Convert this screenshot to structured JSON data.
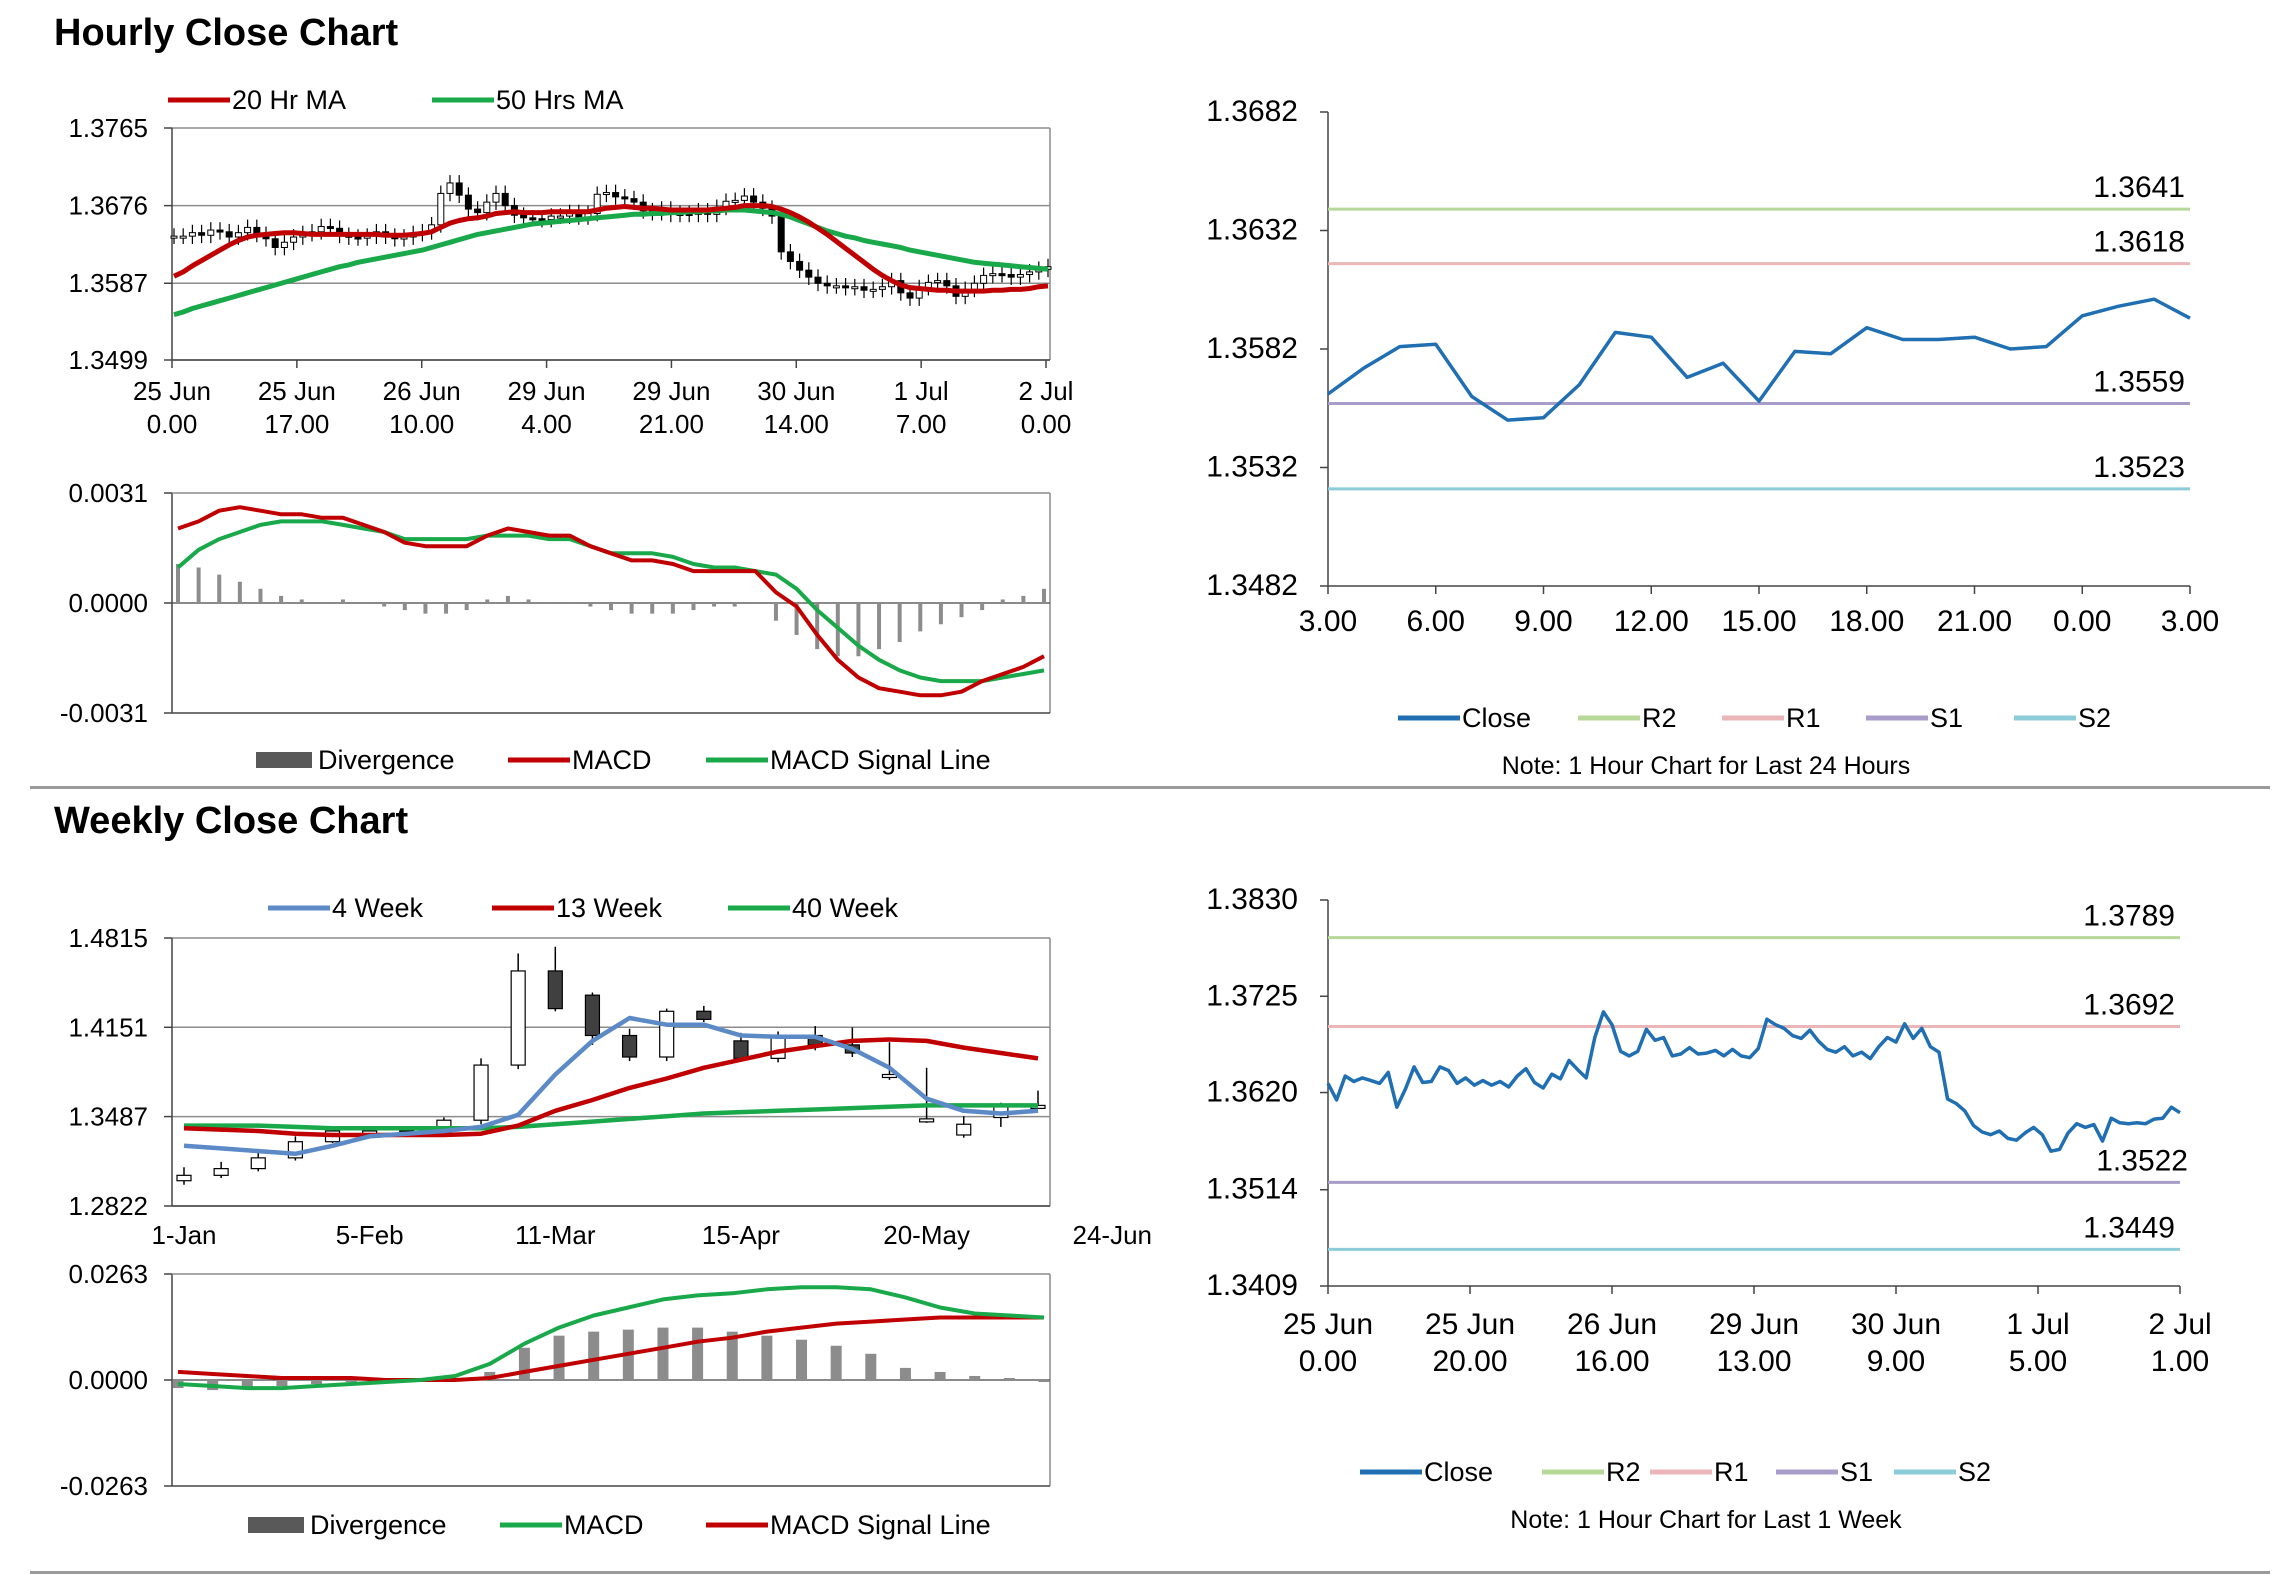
{
  "sections": {
    "hourly_title": "Hourly Close Chart",
    "weekly_title": "Weekly Close Chart"
  },
  "notes": {
    "hourly": "Note: 1 Hour Chart for Last 24 Hours",
    "weekly": "Note: 1 Hour Chart for  Last 1 Week"
  },
  "colors": {
    "close": "#1f6fb2",
    "r2": "#b8d89a",
    "r1": "#eab6b8",
    "s1": "#a89cc8",
    "s2": "#8ccbd8",
    "ma_red": "#c00000",
    "ma_green": "#19a84a",
    "ma_blue": "#5b8ac6",
    "bar_gray": "#595959"
  },
  "chart_data": [
    {
      "id": "hourly-price",
      "type": "candlestick",
      "title": "Hourly Close Chart",
      "yticks": [
        "1.3765",
        "1.3676",
        "1.3587",
        "1.3499"
      ],
      "ylim": [
        1.3499,
        1.3765
      ],
      "xticks": [
        [
          "25 Jun",
          "0.00"
        ],
        [
          "25 Jun",
          "17.00"
        ],
        [
          "26 Jun",
          "10.00"
        ],
        [
          "29 Jun",
          "4.00"
        ],
        [
          "29 Jun",
          "21.00"
        ],
        [
          "30 Jun",
          "14.00"
        ],
        [
          "1 Jul",
          "7.00"
        ],
        [
          "2 Jul",
          "0.00"
        ]
      ],
      "legend": [
        "20 Hr MA",
        "50 Hrs MA"
      ],
      "close": [
        1.3641,
        1.3641,
        1.3645,
        1.3642,
        1.3648,
        1.3646,
        1.364,
        1.3645,
        1.3651,
        1.3643,
        1.3638,
        1.3628,
        1.3634,
        1.364,
        1.3644,
        1.3646,
        1.3652,
        1.365,
        1.3642,
        1.364,
        1.3639,
        1.3641,
        1.3646,
        1.3641,
        1.3638,
        1.364,
        1.3644,
        1.3646,
        1.3654,
        1.369,
        1.3702,
        1.3688,
        1.3672,
        1.3668,
        1.368,
        1.369,
        1.3676,
        1.3665,
        1.3662,
        1.3661,
        1.366,
        1.3664,
        1.3664,
        1.3668,
        1.3663,
        1.3667,
        1.3689,
        1.3691,
        1.3686,
        1.3684,
        1.368,
        1.367,
        1.3668,
        1.3672,
        1.3666,
        1.3667,
        1.3666,
        1.367,
        1.3666,
        1.3674,
        1.3681,
        1.3682,
        1.3687,
        1.368,
        1.3673,
        1.3664,
        1.3623,
        1.3612,
        1.3602,
        1.3594,
        1.3587,
        1.3584,
        1.3584,
        1.3582,
        1.3583,
        1.3579,
        1.358,
        1.3583,
        1.359,
        1.3576,
        1.357,
        1.3582,
        1.3588,
        1.359,
        1.3584,
        1.3572,
        1.358,
        1.3587,
        1.3596,
        1.3598,
        1.3597,
        1.3594,
        1.3597,
        1.36,
        1.3603,
        1.3606
      ],
      "ma20": [
        1.3595,
        1.36,
        1.3607,
        1.3613,
        1.3619,
        1.3625,
        1.3631,
        1.3636,
        1.364,
        1.3642,
        1.3643,
        1.3644,
        1.3645,
        1.3645,
        1.3644,
        1.3643,
        1.3643,
        1.3643,
        1.3643,
        1.3643,
        1.3643,
        1.3643,
        1.3643,
        1.3642,
        1.3642,
        1.3642,
        1.3643,
        1.3644,
        1.3646,
        1.3651,
        1.3656,
        1.3659,
        1.3661,
        1.3662,
        1.3664,
        1.3667,
        1.3668,
        1.3669,
        1.3668,
        1.3668,
        1.3668,
        1.3669,
        1.3669,
        1.3669,
        1.3669,
        1.3669,
        1.3671,
        1.3673,
        1.3674,
        1.3675,
        1.3674,
        1.3673,
        1.3673,
        1.3672,
        1.3671,
        1.3671,
        1.3671,
        1.3671,
        1.3671,
        1.3672,
        1.3673,
        1.3674,
        1.3676,
        1.3676,
        1.3676,
        1.3675,
        1.3672,
        1.3668,
        1.3663,
        1.3657,
        1.365,
        1.3643,
        1.3635,
        1.3627,
        1.3619,
        1.3611,
        1.3603,
        1.3596,
        1.359,
        1.3585,
        1.3582,
        1.3581,
        1.358,
        1.3579,
        1.3579,
        1.3578,
        1.3578,
        1.3578,
        1.3578,
        1.3579,
        1.3579,
        1.358,
        1.358,
        1.3581,
        1.3583,
        1.3584
      ],
      "ma50": [
        1.3551,
        1.3554,
        1.3558,
        1.3561,
        1.3564,
        1.3567,
        1.357,
        1.3573,
        1.3576,
        1.3579,
        1.3582,
        1.3585,
        1.3588,
        1.3591,
        1.3594,
        1.3597,
        1.36,
        1.3603,
        1.3606,
        1.3608,
        1.3611,
        1.3613,
        1.3615,
        1.3617,
        1.3619,
        1.3621,
        1.3623,
        1.3625,
        1.3628,
        1.3631,
        1.3634,
        1.3637,
        1.364,
        1.3643,
        1.3645,
        1.3647,
        1.3649,
        1.3651,
        1.3653,
        1.3655,
        1.3656,
        1.3657,
        1.3658,
        1.3659,
        1.366,
        1.3661,
        1.3662,
        1.3663,
        1.3664,
        1.3665,
        1.3666,
        1.3666,
        1.3667,
        1.3667,
        1.3668,
        1.3668,
        1.3669,
        1.3669,
        1.367,
        1.367,
        1.3671,
        1.3671,
        1.3671,
        1.367,
        1.3669,
        1.3668,
        1.3666,
        1.3663,
        1.3659,
        1.3655,
        1.3651,
        1.3647,
        1.3644,
        1.3641,
        1.3639,
        1.3636,
        1.3634,
        1.3632,
        1.363,
        1.3628,
        1.3625,
        1.3623,
        1.3621,
        1.3619,
        1.3617,
        1.3615,
        1.3613,
        1.3611,
        1.361,
        1.3609,
        1.3608,
        1.3607,
        1.3606,
        1.3605,
        1.3604,
        1.3603
      ]
    },
    {
      "id": "hourly-macd",
      "type": "macd",
      "yticks": [
        "0.0031",
        "0.0000",
        "-0.0031"
      ],
      "ylim": [
        -0.0031,
        0.0031
      ],
      "legend": [
        "Divergence",
        "MACD",
        "MACD Signal Line"
      ],
      "macd": [
        0.0021,
        0.0023,
        0.0026,
        0.0027,
        0.0026,
        0.0025,
        0.0025,
        0.0024,
        0.0024,
        0.0022,
        0.002,
        0.0017,
        0.0016,
        0.0016,
        0.0016,
        0.0019,
        0.0021,
        0.002,
        0.0019,
        0.0019,
        0.0016,
        0.0014,
        0.0012,
        0.0012,
        0.0011,
        0.0009,
        0.0009,
        0.0009,
        0.0009,
        0.0003,
        -0.0001,
        -0.0009,
        -0.0016,
        -0.0021,
        -0.0024,
        -0.0025,
        -0.0026,
        -0.0026,
        -0.0025,
        -0.0022,
        -0.002,
        -0.0018,
        -0.0015
      ],
      "signal": [
        0.001,
        0.0015,
        0.0018,
        0.002,
        0.0022,
        0.0023,
        0.0023,
        0.0023,
        0.0022,
        0.0021,
        0.002,
        0.0018,
        0.0018,
        0.0018,
        0.0018,
        0.0019,
        0.0019,
        0.0019,
        0.0018,
        0.0018,
        0.0016,
        0.0014,
        0.0014,
        0.0014,
        0.0013,
        0.0011,
        0.001,
        0.001,
        0.0009,
        0.0008,
        0.0004,
        -0.0002,
        -0.0007,
        -0.0012,
        -0.0016,
        -0.0019,
        -0.0021,
        -0.0022,
        -0.0022,
        -0.0022,
        -0.0021,
        -0.002,
        -0.0019
      ],
      "divergence": [
        0.0011,
        0.001,
        0.0008,
        0.0006,
        0.0004,
        0.0002,
        0.0001,
        0.0,
        0.0001,
        0.0,
        -0.0001,
        -0.0002,
        -0.0003,
        -0.0003,
        -0.0002,
        0.0001,
        0.0002,
        0.0001,
        0.0,
        0.0,
        -0.0001,
        -0.0002,
        -0.0003,
        -0.0003,
        -0.0003,
        -0.0002,
        -0.0001,
        -0.0001,
        0.0,
        -0.0005,
        -0.0009,
        -0.0013,
        -0.0015,
        -0.0015,
        -0.0013,
        -0.0011,
        -0.0008,
        -0.0006,
        -0.0004,
        -0.0002,
        0.0001,
        0.0002,
        0.0004
      ]
    },
    {
      "id": "hourly-24h",
      "type": "line",
      "yticks": [
        "1.3682",
        "1.3632",
        "1.3582",
        "1.3532",
        "1.3482"
      ],
      "ylim": [
        1.3482,
        1.3682
      ],
      "xticks": [
        "3.00",
        "6.00",
        "9.00",
        "12.00",
        "15.00",
        "18.00",
        "21.00",
        "0.00",
        "3.00"
      ],
      "x": [
        3,
        4,
        5,
        6,
        7,
        8,
        9,
        10,
        11,
        12,
        13,
        14,
        15,
        16,
        17,
        18,
        19,
        20,
        21,
        22,
        23,
        24,
        25,
        26,
        27
      ],
      "close": [
        1.3563,
        1.3574,
        1.3583,
        1.3584,
        1.3562,
        1.3552,
        1.3553,
        1.3567,
        1.3589,
        1.3587,
        1.357,
        1.3576,
        1.356,
        1.3581,
        1.358,
        1.3591,
        1.3586,
        1.3586,
        1.3587,
        1.3582,
        1.3583,
        1.3596,
        1.36,
        1.3603,
        1.3595
      ],
      "levels": {
        "R2": 1.3641,
        "R1": 1.3618,
        "S1": 1.3559,
        "S2": 1.3523
      },
      "level_labels": {
        "R2": "1.3641",
        "R1": "1.3618",
        "S1": "1.3559",
        "S2": "1.3523"
      },
      "legend": [
        "Close",
        "R2",
        "R1",
        "S1",
        "S2"
      ]
    },
    {
      "id": "weekly-price",
      "type": "candlestick",
      "title": "Weekly Close Chart",
      "yticks": [
        "1.4815",
        "1.4151",
        "1.3487",
        "1.2822"
      ],
      "ylim": [
        1.2822,
        1.4815
      ],
      "xticks": [
        "1-Jan",
        "5-Feb",
        "11-Mar",
        "15-Apr",
        "20-May",
        "24-Jun"
      ],
      "legend": [
        "4 Week",
        "13 Week",
        "40 Week"
      ],
      "open": [
        1.301,
        1.305,
        1.31,
        1.318,
        1.33,
        1.338,
        1.338,
        1.337,
        1.346,
        1.387,
        1.457,
        1.439,
        1.409,
        1.393,
        1.427,
        1.405,
        1.392,
        1.409,
        1.402,
        1.38,
        1.347,
        1.335,
        1.348,
        1.357
      ],
      "close": [
        1.305,
        1.31,
        1.318,
        1.33,
        1.338,
        1.338,
        1.337,
        1.346,
        1.387,
        1.457,
        1.429,
        1.409,
        1.393,
        1.427,
        1.421,
        1.392,
        1.409,
        1.402,
        1.396,
        1.38,
        1.347,
        1.343,
        1.357,
        1.357
      ],
      "high": [
        1.311,
        1.315,
        1.323,
        1.334,
        1.341,
        1.341,
        1.34,
        1.348,
        1.392,
        1.47,
        1.475,
        1.441,
        1.414,
        1.429,
        1.431,
        1.411,
        1.412,
        1.416,
        1.415,
        1.404,
        1.385,
        1.349,
        1.359,
        1.368
      ],
      "low": [
        1.298,
        1.303,
        1.308,
        1.316,
        1.329,
        1.335,
        1.335,
        1.335,
        1.343,
        1.384,
        1.427,
        1.402,
        1.39,
        1.39,
        1.419,
        1.39,
        1.389,
        1.398,
        1.393,
        1.376,
        1.344,
        1.333,
        1.341,
        1.355
      ],
      "ma4": [
        1.327,
        1.325,
        1.323,
        1.321,
        1.327,
        1.334,
        1.336,
        1.338,
        1.341,
        1.35,
        1.38,
        1.405,
        1.422,
        1.417,
        1.417,
        1.409,
        1.408,
        1.408,
        1.399,
        1.385,
        1.362,
        1.353,
        1.351,
        1.353
      ],
      "ma13": [
        1.34,
        1.339,
        1.338,
        1.336,
        1.335,
        1.335,
        1.335,
        1.335,
        1.336,
        1.342,
        1.353,
        1.361,
        1.37,
        1.377,
        1.385,
        1.391,
        1.397,
        1.401,
        1.405,
        1.406,
        1.405,
        1.4,
        1.396,
        1.392
      ],
      "ma40": [
        1.342,
        1.342,
        1.342,
        1.341,
        1.34,
        1.34,
        1.34,
        1.34,
        1.34,
        1.341,
        1.343,
        1.345,
        1.347,
        1.349,
        1.351,
        1.352,
        1.353,
        1.354,
        1.355,
        1.356,
        1.357,
        1.357,
        1.357,
        1.357
      ]
    },
    {
      "id": "weekly-macd",
      "type": "macd",
      "yticks": [
        "0.0263",
        "0.0000",
        "-0.0263"
      ],
      "ylim": [
        -0.0263,
        0.0263
      ],
      "legend": [
        "Divergence",
        "MACD",
        "MACD Signal Line"
      ],
      "divergence": [
        -0.002,
        -0.0025,
        -0.002,
        -0.0015,
        -0.001,
        -0.0005,
        0.0,
        0.0,
        0.0,
        0.002,
        0.008,
        0.011,
        0.012,
        0.0125,
        0.013,
        0.013,
        0.012,
        0.011,
        0.01,
        0.0085,
        0.0065,
        0.003,
        0.002,
        0.001,
        0.0005,
        -0.0005
      ],
      "macd": [
        -0.001,
        -0.0015,
        -0.002,
        -0.002,
        -0.0015,
        -0.001,
        -0.0005,
        0.0,
        0.001,
        0.004,
        0.009,
        0.013,
        0.016,
        0.018,
        0.02,
        0.021,
        0.0215,
        0.0225,
        0.023,
        0.023,
        0.0225,
        0.0205,
        0.018,
        0.0165,
        0.016,
        0.0155
      ],
      "signal": [
        0.002,
        0.0015,
        0.001,
        0.0005,
        0.0005,
        0.0005,
        0.0,
        0.0,
        0.0,
        0.0005,
        0.002,
        0.0035,
        0.005,
        0.0065,
        0.008,
        0.0095,
        0.0105,
        0.012,
        0.013,
        0.014,
        0.0145,
        0.015,
        0.0155,
        0.0155,
        0.0155,
        0.0155
      ]
    },
    {
      "id": "weekly-1w",
      "type": "line",
      "yticks": [
        "1.3830",
        "1.3725",
        "1.3620",
        "1.3514",
        "1.3409"
      ],
      "ylim": [
        1.3409,
        1.383
      ],
      "xticks": [
        [
          "25 Jun",
          "0.00"
        ],
        [
          "25 Jun",
          "20.00"
        ],
        [
          "26 Jun",
          "16.00"
        ],
        [
          "29 Jun",
          "13.00"
        ],
        [
          "30 Jun",
          "9.00"
        ],
        [
          "1 Jul",
          "5.00"
        ],
        [
          "2 Jul",
          "1.00"
        ]
      ],
      "close": [
        1.363,
        1.3612,
        1.3638,
        1.3632,
        1.3636,
        1.3633,
        1.363,
        1.3642,
        1.3604,
        1.3624,
        1.3648,
        1.3631,
        1.3632,
        1.3648,
        1.3644,
        1.363,
        1.3636,
        1.3628,
        1.3633,
        1.3628,
        1.3632,
        1.3626,
        1.3638,
        1.3646,
        1.3631,
        1.3625,
        1.364,
        1.3635,
        1.3655,
        1.3645,
        1.3636,
        1.368,
        1.3708,
        1.3694,
        1.3665,
        1.366,
        1.3665,
        1.3689,
        1.3677,
        1.368,
        1.366,
        1.3662,
        1.3669,
        1.3662,
        1.3663,
        1.3666,
        1.366,
        1.3667,
        1.366,
        1.3658,
        1.3668,
        1.37,
        1.3694,
        1.369,
        1.3682,
        1.3679,
        1.3688,
        1.3676,
        1.3667,
        1.3664,
        1.367,
        1.366,
        1.3664,
        1.3657,
        1.367,
        1.368,
        1.3675,
        1.3695,
        1.3679,
        1.369,
        1.367,
        1.3664,
        1.3613,
        1.3608,
        1.36,
        1.3584,
        1.3577,
        1.3574,
        1.3578,
        1.357,
        1.3568,
        1.3576,
        1.3582,
        1.3574,
        1.3556,
        1.3558,
        1.3576,
        1.3586,
        1.3582,
        1.3585,
        1.3567,
        1.3592,
        1.3587,
        1.3586,
        1.3587,
        1.3586,
        1.3591,
        1.3592,
        1.3604,
        1.3598
      ],
      "levels": {
        "R2": 1.3789,
        "R1": 1.3692,
        "S1": 1.3522,
        "S2": 1.3449
      },
      "level_labels": {
        "R2": "1.3789",
        "R1": "1.3692",
        "S1": "1.3522",
        "S2": "1.3449"
      },
      "legend": [
        "Close",
        "R2",
        "R1",
        "S1",
        "S2"
      ]
    }
  ]
}
